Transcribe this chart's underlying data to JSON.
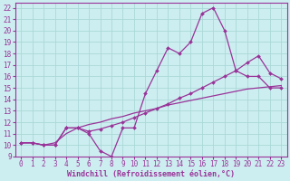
{
  "xlabel": "Windchill (Refroidissement éolien,°C)",
  "bg_color": "#cdeef0",
  "grid_color": "#aad8d8",
  "line_color": "#993399",
  "spine_color": "#993399",
  "xlim": [
    -0.5,
    23.5
  ],
  "ylim": [
    9,
    22.4
  ],
  "xticks": [
    0,
    1,
    2,
    3,
    4,
    5,
    6,
    7,
    8,
    9,
    10,
    11,
    12,
    13,
    14,
    15,
    16,
    17,
    18,
    19,
    20,
    21,
    22,
    23
  ],
  "yticks": [
    9,
    10,
    11,
    12,
    13,
    14,
    15,
    16,
    17,
    18,
    19,
    20,
    21,
    22
  ],
  "line1_x": [
    0,
    1,
    2,
    3,
    4,
    5,
    6,
    7,
    8,
    9,
    10,
    11,
    12,
    13,
    14,
    15,
    16,
    17,
    18,
    19,
    20,
    21,
    22,
    23
  ],
  "line1_y": [
    10.2,
    10.2,
    10.0,
    10.0,
    11.5,
    11.5,
    11.0,
    9.5,
    9.0,
    11.5,
    11.5,
    14.5,
    16.5,
    18.5,
    18.0,
    19.0,
    21.5,
    22.0,
    20.0,
    16.5,
    16.0,
    16.0,
    15.0,
    15.0
  ],
  "line2_x": [
    0,
    1,
    2,
    3,
    4,
    5,
    6,
    7,
    8,
    9,
    10,
    11,
    12,
    13,
    14,
    15,
    16,
    17,
    18,
    19,
    20,
    21,
    22,
    23
  ],
  "line2_y": [
    10.2,
    10.2,
    10.0,
    10.0,
    11.5,
    11.5,
    11.2,
    11.4,
    11.7,
    12.0,
    12.4,
    12.8,
    13.2,
    13.6,
    14.1,
    14.5,
    15.0,
    15.5,
    16.0,
    16.5,
    17.2,
    17.8,
    16.3,
    15.8
  ],
  "line3_x": [
    0,
    1,
    2,
    3,
    4,
    5,
    6,
    7,
    8,
    9,
    10,
    11,
    12,
    13,
    14,
    15,
    16,
    17,
    18,
    19,
    20,
    21,
    22,
    23
  ],
  "line3_y": [
    10.2,
    10.2,
    10.0,
    10.2,
    11.0,
    11.5,
    11.8,
    12.0,
    12.3,
    12.5,
    12.8,
    13.0,
    13.2,
    13.5,
    13.7,
    13.9,
    14.1,
    14.3,
    14.5,
    14.7,
    14.9,
    15.0,
    15.1,
    15.2
  ],
  "tick_fontsize": 5.5,
  "xlabel_fontsize": 6.0,
  "marker": "D",
  "marker_size": 2.0,
  "linewidth": 0.9
}
